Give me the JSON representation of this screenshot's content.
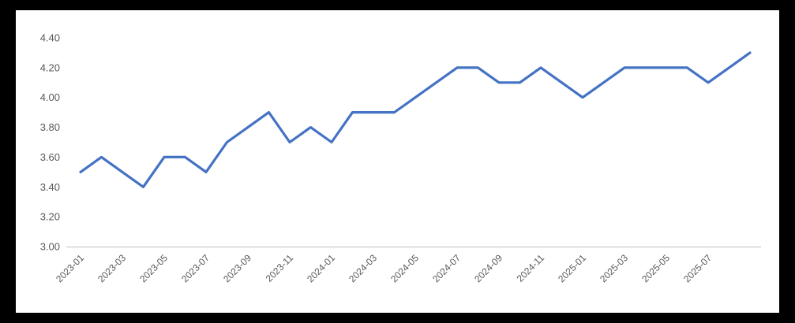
{
  "page": {
    "background_color": "#000000",
    "chart_background_color": "#FFFFFF"
  },
  "chart_data": {
    "type": "line",
    "title": "",
    "xlabel": "",
    "ylabel": "",
    "x": [
      "2023-01",
      "2023-02",
      "2023-03",
      "2023-04",
      "2023-05",
      "2023-06",
      "2023-07",
      "2023-08",
      "2023-09",
      "2023-10",
      "2023-11",
      "2023-12",
      "2024-01",
      "2024-02",
      "2024-03",
      "2024-04",
      "2024-05",
      "2024-06",
      "2024-07",
      "2024-08",
      "2024-09",
      "2024-10",
      "2024-11",
      "2024-12",
      "2025-01",
      "2025-02",
      "2025-03",
      "2025-04",
      "2025-05",
      "2025-06",
      "2025-07",
      "2025-08",
      "2025-09"
    ],
    "values": [
      3.5,
      3.6,
      3.5,
      3.4,
      3.6,
      3.6,
      3.5,
      3.7,
      3.8,
      3.9,
      3.7,
      3.8,
      3.7,
      3.9,
      3.9,
      3.9,
      4.0,
      4.1,
      4.2,
      4.2,
      4.1,
      4.1,
      4.2,
      4.1,
      4.0,
      4.1,
      4.2,
      4.2,
      4.2,
      4.2,
      4.1,
      4.2,
      4.3
    ],
    "x_tick_labels": [
      "2023-01",
      "2023-03",
      "2023-05",
      "2023-07",
      "2023-09",
      "2023-11",
      "2024-01",
      "2024-03",
      "2024-05",
      "2024-07",
      "2024-09",
      "2024-11",
      "2025-01",
      "2025-03",
      "2025-05",
      "2025-07"
    ],
    "x_tick_every_n_points": 2,
    "y_ticks": [
      3.0,
      3.2,
      3.4,
      3.6,
      3.8,
      4.0,
      4.2,
      4.4
    ],
    "y_tick_labels": [
      "3.00",
      "3.20",
      "3.40",
      "3.60",
      "3.80",
      "4.00",
      "4.20",
      "4.40"
    ],
    "ylim": [
      3.0,
      4.4
    ],
    "grid": false,
    "legend": false,
    "x_tick_label_rotation_deg": -45,
    "line_color": "#4472C4",
    "line_width": 3.2,
    "axis_line_color": "#BFBFBF",
    "tick_label_color": "#595959"
  }
}
